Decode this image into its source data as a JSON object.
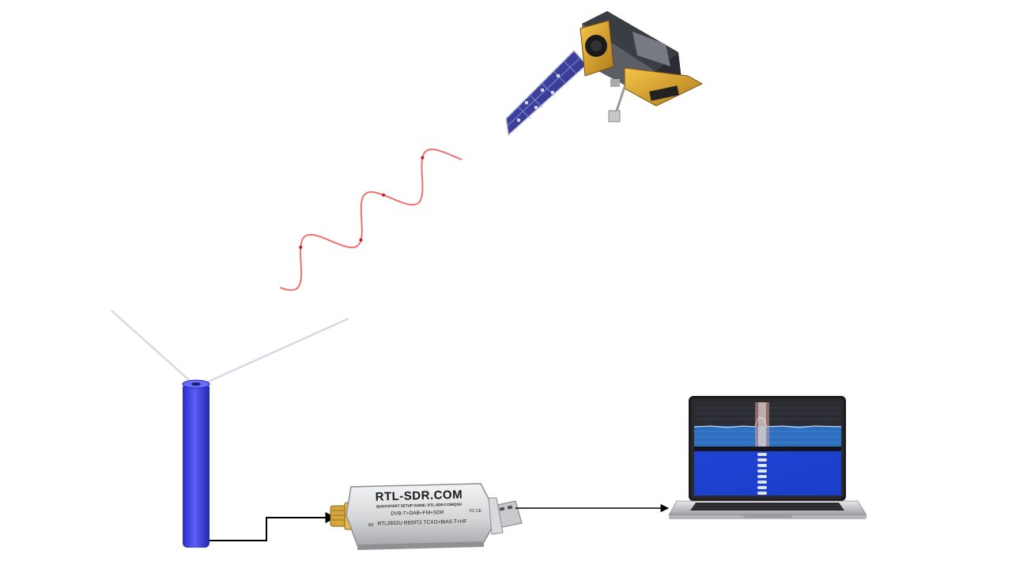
{
  "diagram": {
    "nodes": [
      {
        "id": "satellite",
        "icon": "satellite-icon"
      },
      {
        "id": "antenna",
        "icon": "antenna-icon"
      },
      {
        "id": "sdr-dongle",
        "icon": "usb-dongle-icon"
      },
      {
        "id": "laptop",
        "icon": "laptop-icon"
      }
    ],
    "edges": [
      {
        "from": "satellite",
        "to": "antenna",
        "kind": "radio-wave"
      },
      {
        "from": "antenna",
        "to": "sdr-dongle",
        "kind": "arrow"
      },
      {
        "from": "sdr-dongle",
        "to": "laptop",
        "kind": "arrow"
      }
    ],
    "colors": {
      "wave": "#f07070",
      "antenna_tube": "#3a3ee0",
      "dongle_body": "#d9dadc",
      "connector": "#d4a640",
      "screen_top": "#2e6fbf",
      "screen_waterfall": "#1840d8",
      "arrow": "#000000"
    }
  },
  "dongle": {
    "brand": "RTL-SDR.COM",
    "line1": "QUICKSTART SETUP GUIDE: RTL-SDR.COM/QSG",
    "line2": "DVB-T+DAB+FM+SDR",
    "line3": "RTL2832U R820T2 TCXO+BIAS T+HF",
    "port_label": "R3",
    "cert_mark": "FC CE"
  }
}
